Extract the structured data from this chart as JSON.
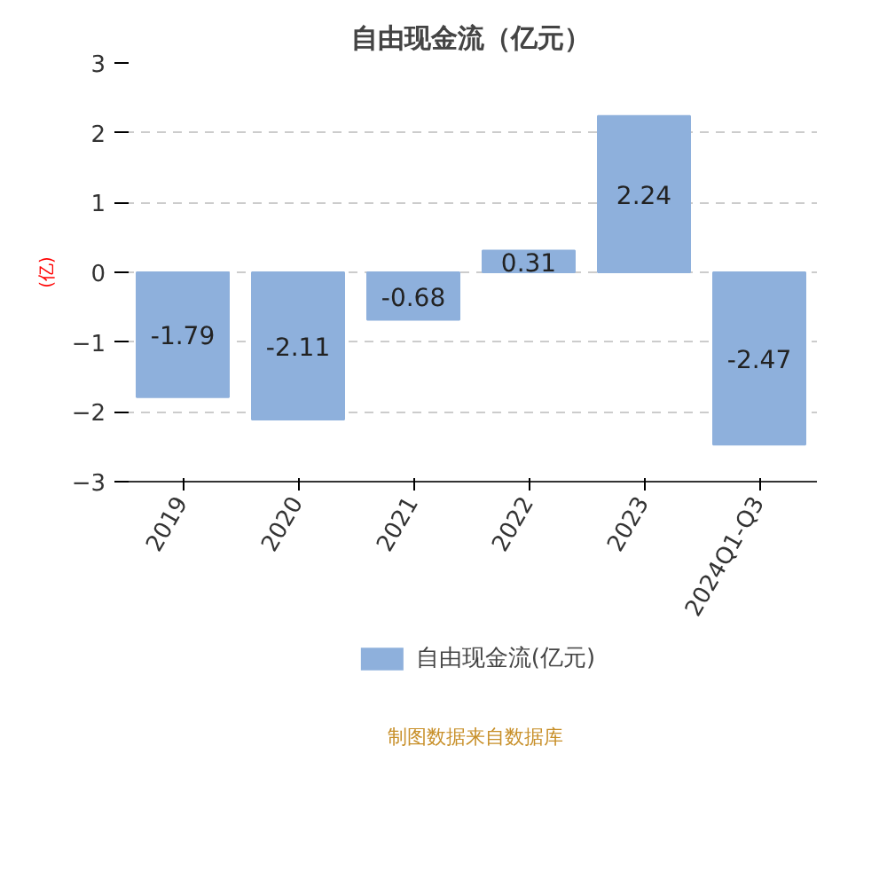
{
  "chart_data": {
    "type": "bar",
    "title": "自由现金流（亿元）",
    "ylabel": "(亿)",
    "categories": [
      "2019",
      "2020",
      "2021",
      "2022",
      "2023",
      "2024Q1-Q3"
    ],
    "series": [
      {
        "name": "自由现金流(亿元)",
        "color": "#8eb0dc",
        "values": [
          -1.79,
          -2.11,
          -0.68,
          0.31,
          2.24,
          -2.47
        ]
      }
    ],
    "ylim": [
      -3,
      3
    ],
    "yticks": [
      -3,
      -2,
      -1,
      0,
      1,
      2,
      3
    ],
    "grid": "y",
    "legend": "bottom",
    "data_labels": true,
    "annotations": [
      "制图数据来自数据库"
    ]
  }
}
